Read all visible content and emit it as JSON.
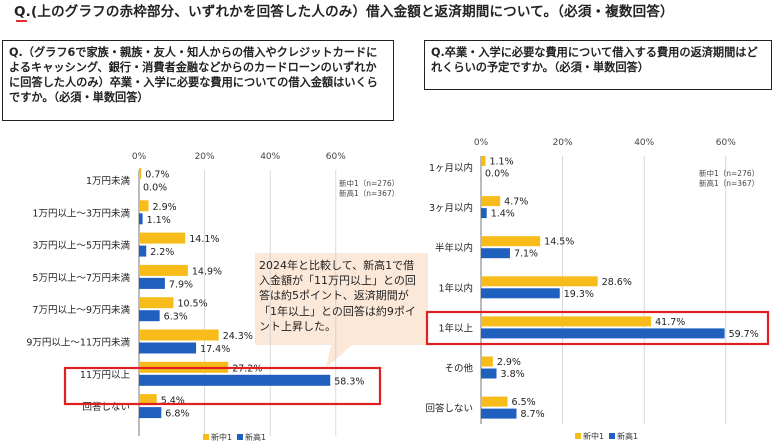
{
  "page": {
    "heading": "Q.(上のグラフの赤枠部分、いずれかを回答した人のみ）借入金額と返済期間について。（必須・複数回答）"
  },
  "left_question": {
    "text": "Q.（グラフ6で家族・親族・友人・知人からの借入やクレジットカードによるキャッシング、銀行・消費者金融などからのカードローンのいずれかに回答した人のみ）卒業・入学に必要な費用についての借入金額はいくらですか。（必須・単数回答）"
  },
  "right_question": {
    "text": "Q.卒業・入学に必要な費用について借入する費用の返済期間はどれくらいの予定ですか。（必須・単数回答）"
  },
  "callout": {
    "text": "2024年と比較して、新高1で借入金額が「11万円以上」との回答は約5ポイント、返済期間が「1年以上」との回答は約9ポイント上昇した。"
  },
  "colors": {
    "series1": "#f7bb1a",
    "series2": "#1f5fbe",
    "highlight": "#e02020",
    "callout_bg": "#fce8d8",
    "grid": "#cfcfcf"
  },
  "chart_data": [
    {
      "type": "bar",
      "orientation": "horizontal",
      "categories": [
        "1万円未満",
        "1万円以上～3万円未満",
        "3万円以上～5万円未満",
        "5万円以上～7万円未満",
        "7万円以上～9万円未満",
        "9万円以上～11万円未満",
        "11万円以上",
        "回答しない"
      ],
      "series": [
        {
          "name": "新中1",
          "values": [
            0.7,
            2.9,
            14.1,
            14.9,
            10.5,
            24.3,
            27.2,
            5.4
          ]
        },
        {
          "name": "新高1",
          "values": [
            0.0,
            1.1,
            2.2,
            7.9,
            6.3,
            17.4,
            58.3,
            6.8
          ]
        }
      ],
      "value_labels": [
        [
          "0.7%",
          "2.9%",
          "14.1%",
          "14.9%",
          "10.5%",
          "24.3%",
          "27.2%",
          "5.4%"
        ],
        [
          "0.0%",
          "1.1%",
          "2.2%",
          "7.9%",
          "6.3%",
          "17.4%",
          "58.3%",
          "6.8%"
        ]
      ],
      "xlim": [
        0,
        60
      ],
      "ticks": [
        "0%",
        "20%",
        "40%",
        "60%"
      ],
      "legend_note": [
        "新中1（n=276）",
        "新高1（n=367）"
      ],
      "legend": [
        "新中1",
        "新高1"
      ],
      "highlight_category": "11万円以上",
      "grid": true
    },
    {
      "type": "bar",
      "orientation": "horizontal",
      "categories": [
        "1ヶ月以内",
        "3ヶ月以内",
        "半年以内",
        "1年以内",
        "1年以上",
        "その他",
        "回答しない"
      ],
      "series": [
        {
          "name": "新中1",
          "values": [
            1.1,
            4.7,
            14.5,
            28.6,
            41.7,
            2.9,
            6.5
          ]
        },
        {
          "name": "新高1",
          "values": [
            0.0,
            1.4,
            7.1,
            19.3,
            59.7,
            3.8,
            8.7
          ]
        }
      ],
      "value_labels": [
        [
          "1.1%",
          "4.7%",
          "14.5%",
          "28.6%",
          "41.7%",
          "2.9%",
          "6.5%"
        ],
        [
          "0.0%",
          "1.4%",
          "7.1%",
          "19.3%",
          "59.7%",
          "3.8%",
          "8.7%"
        ]
      ],
      "xlim": [
        0,
        60
      ],
      "ticks": [
        "0%",
        "20%",
        "40%",
        "60%"
      ],
      "legend_note": [
        "新中1（n=276）",
        "新高1（n=367）"
      ],
      "legend": [
        "新中1",
        "新高1"
      ],
      "highlight_category": "1年以上",
      "grid": true
    }
  ]
}
